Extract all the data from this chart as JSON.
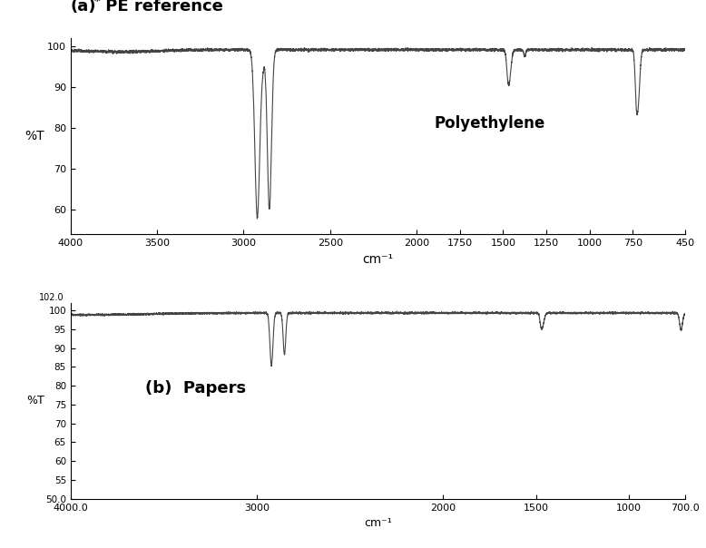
{
  "title_a_part1": "(a)",
  "title_a_star": "*",
  "title_a_part2": " PE reference",
  "label_a": "Polyethylene",
  "ylabel_a": "%T",
  "ylabel_b": "%T",
  "xlabel": "cm⁻¹",
  "xlim_a": [
    4000,
    450
  ],
  "ylim_a": [
    54,
    102
  ],
  "yticks_a": [
    60,
    70,
    80,
    90,
    100
  ],
  "ytick_labels_a": [
    "60",
    "70",
    "80",
    "90",
    "100"
  ],
  "xticks_a": [
    4000,
    3500,
    3000,
    2500,
    2000,
    1750,
    1500,
    1250,
    1000,
    750,
    450
  ],
  "xtick_labels_a": [
    "4000",
    "3500",
    "3000",
    "2500",
    "2000",
    "1750",
    "1500",
    "1250",
    "1000",
    "750",
    "450"
  ],
  "xlim_b": [
    4000,
    700
  ],
  "ylim_b": [
    50,
    102
  ],
  "yticks_b": [
    55,
    60,
    65,
    70,
    75,
    80,
    85,
    90,
    95,
    100
  ],
  "ytick_labels_b": [
    "55",
    "60",
    "65",
    "70",
    "75",
    "80",
    "85",
    "90",
    "95",
    "100"
  ],
  "xticks_b": [
    4000,
    3000,
    2000,
    1500,
    1000,
    700
  ],
  "xtick_labels_b": [
    "4000.0",
    "3000",
    "2000",
    "1500",
    "1000",
    "700.0"
  ],
  "line_color": "#444444",
  "background_color": "#ffffff",
  "noise_seed": 12
}
